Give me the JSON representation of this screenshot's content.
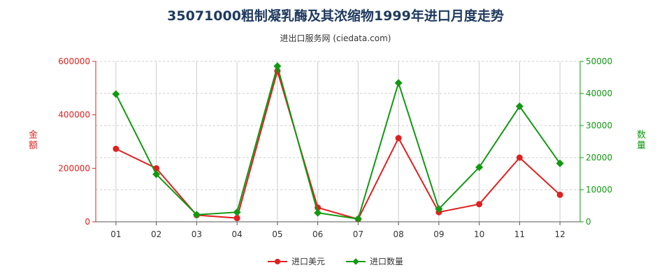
{
  "chart_data": {
    "type": "line",
    "title": "35071000粗制凝乳酶及其浓缩物1999年进口月度走势",
    "subtitle": "进出口服务网 (ciedata.com)",
    "categories": [
      "01",
      "02",
      "03",
      "04",
      "05",
      "06",
      "07",
      "08",
      "09",
      "10",
      "11",
      "12"
    ],
    "y_left": {
      "label": "金额",
      "ticks": [
        "0",
        "200000",
        "400000",
        "600000"
      ],
      "range": [
        0,
        600000
      ],
      "color": "#e02020"
    },
    "y_right": {
      "label": "数量",
      "ticks": [
        "0",
        "10000",
        "20000",
        "30000",
        "40000",
        "50000"
      ],
      "range": [
        0,
        50000
      ],
      "color": "#119911"
    },
    "series": [
      {
        "name": "进口美元",
        "axis": "left",
        "color": "#e02020",
        "marker": "circle",
        "values": [
          273000,
          200000,
          25000,
          14000,
          564000,
          53000,
          10000,
          313000,
          36000,
          66000,
          240000,
          101000
        ]
      },
      {
        "name": "进口数量",
        "axis": "right",
        "color": "#119911",
        "marker": "diamond",
        "values": [
          39800,
          14800,
          2200,
          3000,
          48500,
          2800,
          900,
          43300,
          4000,
          17000,
          36000,
          18200
        ]
      }
    ],
    "grid": true,
    "legend_position": "bottom"
  }
}
